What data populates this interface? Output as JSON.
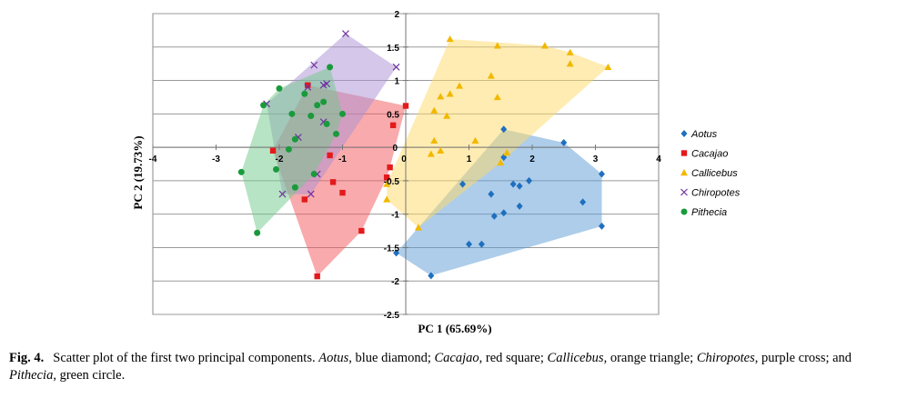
{
  "chart_data": {
    "type": "scatter",
    "title": "",
    "xlabel": "PC 1 (65.69%)",
    "ylabel": "PC 2 (19.73%)",
    "xlim": [
      -4,
      4
    ],
    "ylim": [
      -2.5,
      2
    ],
    "x_ticks": [
      -4,
      -3,
      -2,
      -1,
      0,
      1,
      2,
      3,
      4
    ],
    "y_ticks": [
      2,
      1.5,
      1,
      0.5,
      0,
      -0.5,
      -1,
      -1.5,
      -2,
      -2.5
    ],
    "grid": "horizontal",
    "legend_position": "right",
    "convex_hulls": true,
    "series": [
      {
        "name": "Aotus",
        "marker": "diamond",
        "color": "#1f6fbf",
        "fill": "#5b9bd5",
        "points": [
          [
            -0.15,
            -1.58
          ],
          [
            0.4,
            -1.92
          ],
          [
            0.9,
            -0.55
          ],
          [
            1.35,
            -0.7
          ],
          [
            1.55,
            0.27
          ],
          [
            1.55,
            -0.15
          ],
          [
            1.7,
            -0.55
          ],
          [
            1.8,
            -0.58
          ],
          [
            1.95,
            -0.5
          ],
          [
            2.5,
            0.07
          ],
          [
            3.1,
            -0.4
          ],
          [
            3.1,
            -1.18
          ],
          [
            2.8,
            -0.82
          ],
          [
            1.4,
            -1.03
          ],
          [
            1.55,
            -0.98
          ],
          [
            1.8,
            -0.88
          ],
          [
            1.0,
            -1.45
          ],
          [
            1.2,
            -1.45
          ]
        ]
      },
      {
        "name": "Cacajao",
        "marker": "square",
        "color": "#e31a1c",
        "fill": "#f4565a",
        "points": [
          [
            -1.55,
            0.93
          ],
          [
            0.0,
            0.62
          ],
          [
            -0.2,
            0.33
          ],
          [
            -2.1,
            -0.05
          ],
          [
            -1.2,
            -0.12
          ],
          [
            -0.25,
            -0.3
          ],
          [
            -1.15,
            -0.52
          ],
          [
            -1.0,
            -0.68
          ],
          [
            -1.6,
            -0.78
          ],
          [
            -0.7,
            -1.25
          ],
          [
            -1.4,
            -1.93
          ],
          [
            -0.3,
            -0.45
          ]
        ]
      },
      {
        "name": "Callicebus",
        "marker": "triangle",
        "color": "#f2b800",
        "fill": "#ffd966",
        "points": [
          [
            0.7,
            1.62
          ],
          [
            1.45,
            1.52
          ],
          [
            2.2,
            1.52
          ],
          [
            2.6,
            1.42
          ],
          [
            2.6,
            1.25
          ],
          [
            3.2,
            1.2
          ],
          [
            1.35,
            1.07
          ],
          [
            0.85,
            0.92
          ],
          [
            0.7,
            0.8
          ],
          [
            0.55,
            0.76
          ],
          [
            1.45,
            0.75
          ],
          [
            0.65,
            0.47
          ],
          [
            0.45,
            0.55
          ],
          [
            0.45,
            0.1
          ],
          [
            1.1,
            0.1
          ],
          [
            0.4,
            -0.1
          ],
          [
            0.55,
            -0.05
          ],
          [
            1.6,
            -0.08
          ],
          [
            1.5,
            -0.23
          ],
          [
            -0.3,
            -0.55
          ],
          [
            -0.3,
            -0.78
          ],
          [
            0.2,
            -1.2
          ]
        ]
      },
      {
        "name": "Chiropotes",
        "marker": "cross",
        "color": "#7030a0",
        "fill": "#a98fd3",
        "points": [
          [
            -0.95,
            1.7
          ],
          [
            -0.15,
            1.2
          ],
          [
            -1.45,
            1.23
          ],
          [
            -1.3,
            0.93
          ],
          [
            -1.25,
            0.95
          ],
          [
            -1.55,
            0.9
          ],
          [
            -2.2,
            0.65
          ],
          [
            -1.7,
            0.15
          ],
          [
            -1.4,
            -0.4
          ],
          [
            -1.95,
            -0.7
          ],
          [
            -1.5,
            -0.7
          ],
          [
            -1.3,
            0.38
          ]
        ]
      },
      {
        "name": "Pithecia",
        "marker": "circle",
        "color": "#1a9a3c",
        "fill": "#6fc98a",
        "points": [
          [
            -1.2,
            1.2
          ],
          [
            -2.0,
            0.88
          ],
          [
            -2.25,
            0.63
          ],
          [
            -1.6,
            0.8
          ],
          [
            -1.3,
            0.68
          ],
          [
            -1.4,
            0.63
          ],
          [
            -1.8,
            0.5
          ],
          [
            -1.5,
            0.47
          ],
          [
            -1.0,
            0.5
          ],
          [
            -1.25,
            0.35
          ],
          [
            -1.1,
            0.2
          ],
          [
            -1.75,
            0.12
          ],
          [
            -1.85,
            -0.03
          ],
          [
            -2.05,
            -0.33
          ],
          [
            -1.45,
            -0.4
          ],
          [
            -1.75,
            -0.6
          ],
          [
            -2.6,
            -0.37
          ],
          [
            -2.35,
            -1.28
          ]
        ]
      }
    ]
  },
  "caption": {
    "label": "Fig. 4.",
    "t1": "Scatter plot of the first two principal components.",
    "n1": "Aotus",
    "t2": ", blue diamond;",
    "n2": "Cacajao",
    "t3": ", red square;",
    "n3": "Callicebus",
    "t4": ", orange triangle;",
    "n4": "Chiropotes",
    "t5": ", purple cross; and",
    "n5": "Pithecia",
    "t6": ", green circle."
  }
}
